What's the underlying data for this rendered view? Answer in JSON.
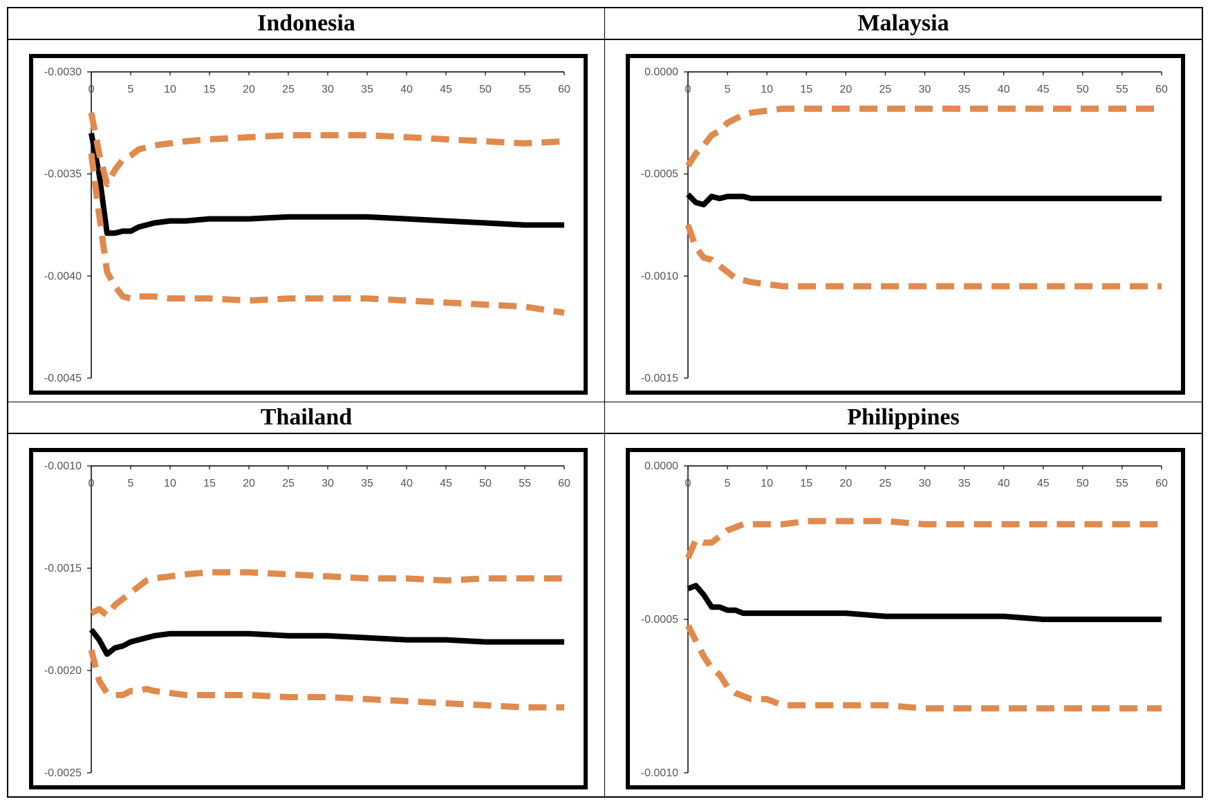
{
  "colors": {
    "central": "#000000",
    "bands": "#e08a4e"
  },
  "panels": [
    {
      "title": "Indonesia"
    },
    {
      "title": "Malaysia"
    },
    {
      "title": "Thailand"
    },
    {
      "title": "Philippines"
    }
  ],
  "chart_data": [
    {
      "type": "line",
      "title": "Indonesia",
      "xlim": [
        0,
        60
      ],
      "ylim": [
        -0.0045,
        -0.003
      ],
      "x_ticks": [
        "0",
        "5",
        "10",
        "15",
        "20",
        "25",
        "30",
        "35",
        "40",
        "45",
        "50",
        "55",
        "60"
      ],
      "y_ticks": [
        "-0.0030",
        "-0.0035",
        "-0.0040",
        "-0.0045"
      ],
      "x": [
        0,
        1,
        2,
        3,
        4,
        5,
        6,
        7,
        8,
        10,
        12,
        15,
        20,
        25,
        30,
        35,
        40,
        45,
        50,
        55,
        60
      ],
      "series": [
        {
          "role": "central",
          "style": "solid",
          "values": [
            -0.0033,
            -0.0035,
            -0.00379,
            -0.00379,
            -0.00378,
            -0.00378,
            -0.00376,
            -0.00375,
            -0.00374,
            -0.00373,
            -0.00373,
            -0.00372,
            -0.00372,
            -0.00371,
            -0.00371,
            -0.00371,
            -0.00372,
            -0.00373,
            -0.00374,
            -0.00375,
            -0.00375
          ]
        },
        {
          "role": "upper",
          "style": "dashed",
          "values": [
            -0.0032,
            -0.0034,
            -0.00355,
            -0.00348,
            -0.00343,
            -0.00341,
            -0.00338,
            -0.00337,
            -0.00336,
            -0.00335,
            -0.00334,
            -0.00333,
            -0.00332,
            -0.00331,
            -0.00331,
            -0.00331,
            -0.00332,
            -0.00333,
            -0.00334,
            -0.00335,
            -0.00334
          ]
        },
        {
          "role": "lower",
          "style": "dashed",
          "values": [
            -0.0034,
            -0.0037,
            -0.00398,
            -0.00405,
            -0.0041,
            -0.00411,
            -0.0041,
            -0.0041,
            -0.0041,
            -0.00411,
            -0.00411,
            -0.00411,
            -0.00412,
            -0.00411,
            -0.00411,
            -0.00411,
            -0.00412,
            -0.00413,
            -0.00414,
            -0.00415,
            -0.00418
          ]
        }
      ]
    },
    {
      "type": "line",
      "title": "Malaysia",
      "xlim": [
        0,
        60
      ],
      "ylim": [
        -0.0015,
        0.0
      ],
      "x_ticks": [
        "0",
        "5",
        "10",
        "15",
        "20",
        "25",
        "30",
        "35",
        "40",
        "45",
        "50",
        "55",
        "60"
      ],
      "y_ticks": [
        "0.0000",
        "-0.0005",
        "-0.0010",
        "-0.0015"
      ],
      "x": [
        0,
        1,
        2,
        3,
        4,
        5,
        6,
        7,
        8,
        10,
        12,
        15,
        20,
        25,
        30,
        35,
        40,
        45,
        50,
        55,
        60
      ],
      "series": [
        {
          "role": "central",
          "style": "solid",
          "values": [
            -0.0006,
            -0.00064,
            -0.00065,
            -0.00061,
            -0.00062,
            -0.00061,
            -0.00061,
            -0.00061,
            -0.00062,
            -0.00062,
            -0.00062,
            -0.00062,
            -0.00062,
            -0.00062,
            -0.00062,
            -0.00062,
            -0.00062,
            -0.00062,
            -0.00062,
            -0.00062,
            -0.00062
          ]
        },
        {
          "role": "upper",
          "style": "dashed",
          "values": [
            -0.00046,
            -0.0004,
            -0.00036,
            -0.00031,
            -0.00029,
            -0.00025,
            -0.00023,
            -0.00021,
            -0.0002,
            -0.00019,
            -0.00018,
            -0.00018,
            -0.00018,
            -0.00018,
            -0.00018,
            -0.00018,
            -0.00018,
            -0.00018,
            -0.00018,
            -0.00018,
            -0.00018
          ]
        },
        {
          "role": "lower",
          "style": "dashed",
          "values": [
            -0.00075,
            -0.00086,
            -0.00091,
            -0.00092,
            -0.00095,
            -0.00098,
            -0.00101,
            -0.00102,
            -0.00103,
            -0.00104,
            -0.00105,
            -0.00105,
            -0.00105,
            -0.00105,
            -0.00105,
            -0.00105,
            -0.00105,
            -0.00105,
            -0.00105,
            -0.00105,
            -0.00105
          ]
        }
      ]
    },
    {
      "type": "line",
      "title": "Thailand",
      "xlim": [
        0,
        60
      ],
      "ylim": [
        -0.0025,
        -0.001
      ],
      "x_ticks": [
        "0",
        "5",
        "10",
        "15",
        "20",
        "25",
        "30",
        "35",
        "40",
        "45",
        "50",
        "55",
        "60"
      ],
      "y_ticks": [
        "-0.0010",
        "-0.0015",
        "-0.0020",
        "-0.0025"
      ],
      "x": [
        0,
        1,
        2,
        3,
        4,
        5,
        6,
        7,
        8,
        10,
        12,
        15,
        20,
        25,
        30,
        35,
        40,
        45,
        50,
        55,
        60
      ],
      "series": [
        {
          "role": "central",
          "style": "solid",
          "values": [
            -0.0018,
            -0.00185,
            -0.00192,
            -0.00189,
            -0.00188,
            -0.00186,
            -0.00185,
            -0.00184,
            -0.00183,
            -0.00182,
            -0.00182,
            -0.00182,
            -0.00182,
            -0.00183,
            -0.00183,
            -0.00184,
            -0.00185,
            -0.00185,
            -0.00186,
            -0.00186,
            -0.00186
          ]
        },
        {
          "role": "upper",
          "style": "dashed",
          "values": [
            -0.00172,
            -0.0017,
            -0.00173,
            -0.00168,
            -0.00165,
            -0.00162,
            -0.00159,
            -0.00156,
            -0.00155,
            -0.00154,
            -0.00153,
            -0.00152,
            -0.00152,
            -0.00153,
            -0.00154,
            -0.00155,
            -0.00155,
            -0.00156,
            -0.00155,
            -0.00155,
            -0.00155
          ]
        },
        {
          "role": "lower",
          "style": "dashed",
          "values": [
            -0.0019,
            -0.00205,
            -0.00211,
            -0.00212,
            -0.00212,
            -0.0021,
            -0.0021,
            -0.00209,
            -0.0021,
            -0.00211,
            -0.00212,
            -0.00212,
            -0.00212,
            -0.00213,
            -0.00213,
            -0.00214,
            -0.00215,
            -0.00216,
            -0.00217,
            -0.00218,
            -0.00218
          ]
        }
      ]
    },
    {
      "type": "line",
      "title": "Philippines",
      "xlim": [
        0,
        60
      ],
      "ylim": [
        -0.001,
        0.0
      ],
      "x_ticks": [
        "0",
        "5",
        "10",
        "15",
        "20",
        "25",
        "30",
        "35",
        "40",
        "45",
        "50",
        "55",
        "60"
      ],
      "y_ticks": [
        "0.0000",
        "-0.0005",
        "-0.0010"
      ],
      "x": [
        0,
        1,
        2,
        3,
        4,
        5,
        6,
        7,
        8,
        10,
        12,
        15,
        20,
        25,
        30,
        35,
        40,
        45,
        50,
        55,
        60
      ],
      "series": [
        {
          "role": "central",
          "style": "solid",
          "values": [
            -0.0004,
            -0.00039,
            -0.00042,
            -0.00046,
            -0.00046,
            -0.00047,
            -0.00047,
            -0.00048,
            -0.00048,
            -0.00048,
            -0.00048,
            -0.00048,
            -0.00048,
            -0.00049,
            -0.00049,
            -0.00049,
            -0.00049,
            -0.0005,
            -0.0005,
            -0.0005,
            -0.0005
          ]
        },
        {
          "role": "upper",
          "style": "dashed",
          "values": [
            -0.0003,
            -0.00024,
            -0.00025,
            -0.00025,
            -0.00023,
            -0.00021,
            -0.0002,
            -0.00019,
            -0.00019,
            -0.00019,
            -0.00019,
            -0.00018,
            -0.00018,
            -0.00018,
            -0.00019,
            -0.00019,
            -0.00019,
            -0.00019,
            -0.00019,
            -0.00019,
            -0.00019
          ]
        },
        {
          "role": "lower",
          "style": "dashed",
          "values": [
            -0.00052,
            -0.00057,
            -0.00062,
            -0.00066,
            -0.00068,
            -0.00072,
            -0.00074,
            -0.00075,
            -0.00076,
            -0.00076,
            -0.00078,
            -0.00078,
            -0.00078,
            -0.00078,
            -0.00079,
            -0.00079,
            -0.00079,
            -0.00079,
            -0.00079,
            -0.00079,
            -0.00079
          ]
        }
      ]
    }
  ]
}
